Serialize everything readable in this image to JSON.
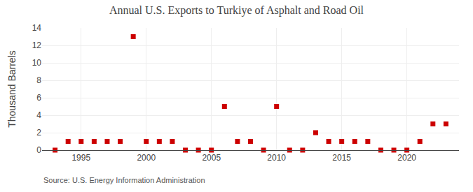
{
  "chart_data": {
    "type": "scatter",
    "title": "Annual U.S. Exports to Turkiye of Asphalt and Road Oil",
    "ylabel": "Thousand Barrels",
    "annotations": [
      "Source: U.S. Energy Information Administration"
    ],
    "x": [
      1993,
      1994,
      1995,
      1996,
      1997,
      1998,
      1999,
      2000,
      2001,
      2002,
      2003,
      2004,
      2005,
      2006,
      2007,
      2008,
      2009,
      2010,
      2011,
      2012,
      2013,
      2014,
      2015,
      2016,
      2017,
      2018,
      2019,
      2020,
      2021,
      2022,
      2023
    ],
    "values": [
      0,
      1,
      1,
      1,
      1,
      1,
      13,
      1,
      1,
      1,
      0,
      0,
      0,
      5,
      1,
      1,
      0,
      5,
      0,
      0,
      2,
      1,
      1,
      1,
      1,
      0,
      0,
      0,
      1,
      3,
      3
    ],
    "color": "#cc0000",
    "marker": "square",
    "xlim": [
      1992,
      2024
    ],
    "ylim": [
      0,
      14
    ],
    "xticks": [
      1995,
      2000,
      2005,
      2010,
      2015,
      2020
    ],
    "yticks": [
      0,
      2,
      4,
      6,
      8,
      10,
      12,
      14
    ],
    "grid": true
  }
}
